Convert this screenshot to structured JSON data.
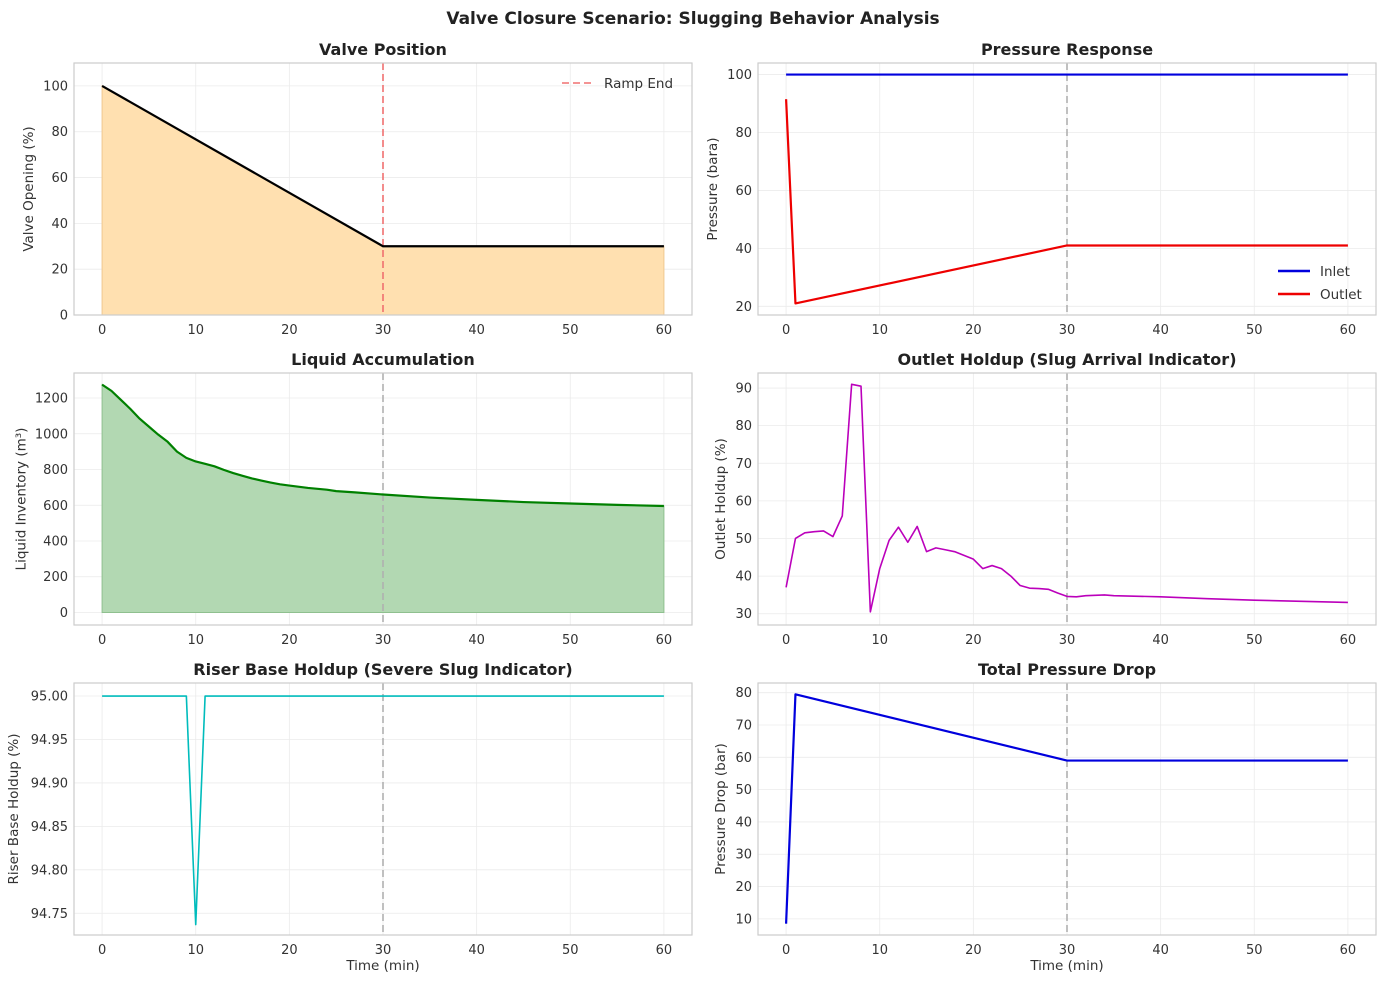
{
  "suptitle": "Valve Closure Scenario: Slugging Behavior Analysis",
  "chart_data": [
    {
      "id": "valve",
      "type": "area",
      "title": "Valve Position",
      "xlabel": "",
      "ylabel": "Valve Opening (%)",
      "xlim": [
        -3,
        63
      ],
      "ylim": [
        0,
        110
      ],
      "xticks": [
        0,
        10,
        20,
        30,
        40,
        50,
        60
      ],
      "yticks": [
        0,
        20,
        40,
        60,
        80,
        100
      ],
      "grid": true,
      "legend": "top-right",
      "vline": {
        "x": 30,
        "color": "#f07070",
        "name": "Ramp End"
      },
      "fill": {
        "color": "#ffe0b0",
        "edge": "#f0c890"
      },
      "series": [
        {
          "color": "#000000",
          "width": 2.2,
          "x": [
            0,
            30,
            31,
            60
          ],
          "y": [
            100,
            30,
            30,
            30
          ]
        }
      ]
    },
    {
      "id": "pressure",
      "type": "line",
      "title": "Pressure Response",
      "xlabel": "",
      "ylabel": "Pressure (bara)",
      "xlim": [
        -3,
        63
      ],
      "ylim": [
        17,
        104
      ],
      "xticks": [
        0,
        10,
        20,
        30,
        40,
        50,
        60
      ],
      "yticks": [
        20,
        40,
        60,
        80,
        100
      ],
      "grid": true,
      "legend": "bottom-right",
      "vline": {
        "x": 30,
        "color": "#b0b0b0"
      },
      "series": [
        {
          "name": "Inlet",
          "color": "#0000dd",
          "width": 2.2,
          "x": [
            0,
            1,
            30,
            60
          ],
          "y": [
            100,
            100,
            100,
            100
          ]
        },
        {
          "name": "Outlet",
          "color": "#ee0000",
          "width": 2.2,
          "x": [
            0,
            1,
            30,
            31,
            60
          ],
          "y": [
            91.5,
            21,
            41,
            41,
            41
          ]
        }
      ]
    },
    {
      "id": "liquid",
      "type": "area",
      "title": "Liquid Accumulation",
      "xlabel": "",
      "ylabel": "Liquid Inventory (m³)",
      "xlim": [
        -3,
        63
      ],
      "ylim": [
        -70,
        1340
      ],
      "xticks": [
        0,
        10,
        20,
        30,
        40,
        50,
        60
      ],
      "yticks": [
        0,
        200,
        400,
        600,
        800,
        1000,
        1200
      ],
      "grid": true,
      "vline": {
        "x": 30,
        "color": "#b0b0b0"
      },
      "fill": {
        "color": "#b2d8b2",
        "edge": "#8fc08f"
      },
      "series": [
        {
          "color": "#008000",
          "width": 2.2,
          "x": [
            0,
            1,
            2,
            3,
            4,
            5,
            6,
            7,
            8,
            9,
            10,
            11,
            12,
            13,
            14,
            15,
            16,
            17,
            18,
            19,
            20,
            22,
            24,
            25,
            27,
            30,
            35,
            40,
            45,
            50,
            55,
            60
          ],
          "y": [
            1275,
            1240,
            1190,
            1140,
            1085,
            1040,
            995,
            955,
            900,
            865,
            845,
            832,
            818,
            798,
            780,
            765,
            750,
            738,
            727,
            717,
            710,
            697,
            687,
            679,
            672,
            660,
            643,
            630,
            618,
            610,
            602,
            596
          ]
        }
      ]
    },
    {
      "id": "outlet_holdup",
      "type": "line",
      "title": "Outlet Holdup (Slug Arrival Indicator)",
      "xlabel": "",
      "ylabel": "Outlet Holdup (%)",
      "xlim": [
        -3,
        63
      ],
      "ylim": [
        27,
        94
      ],
      "xticks": [
        0,
        10,
        20,
        30,
        40,
        50,
        60
      ],
      "yticks": [
        30,
        40,
        50,
        60,
        70,
        80,
        90
      ],
      "grid": true,
      "vline": {
        "x": 30,
        "color": "#b0b0b0"
      },
      "series": [
        {
          "color": "#bb00bb",
          "width": 1.6,
          "x": [
            0,
            1,
            2,
            3,
            4,
            5,
            6,
            7,
            8,
            9,
            10,
            11,
            12,
            13,
            14,
            15,
            16,
            17,
            18,
            19,
            20,
            21,
            22,
            23,
            24,
            25,
            26,
            27,
            28,
            29,
            30,
            31,
            32,
            33,
            34,
            35,
            40,
            45,
            50,
            55,
            60
          ],
          "y": [
            37,
            50,
            51.5,
            51.8,
            52,
            50.5,
            56,
            91,
            90.5,
            30.5,
            42,
            49.5,
            53,
            49,
            53.2,
            46.5,
            47.5,
            47,
            46.5,
            45.5,
            44.5,
            42,
            42.8,
            42,
            40,
            37.5,
            36.8,
            36.7,
            36.5,
            35.5,
            34.6,
            34.5,
            34.8,
            34.9,
            35,
            34.8,
            34.5,
            34,
            33.6,
            33.3,
            33
          ]
        }
      ]
    },
    {
      "id": "riser",
      "type": "line",
      "title": "Riser Base Holdup (Severe Slug Indicator)",
      "xlabel": "Time (min)",
      "ylabel": "Riser Base Holdup (%)",
      "xlim": [
        -3,
        63
      ],
      "ylim": [
        94.725,
        95.015
      ],
      "xticks": [
        0,
        10,
        20,
        30,
        40,
        50,
        60
      ],
      "yticks": [
        94.75,
        94.8,
        94.85,
        94.9,
        94.95,
        95.0
      ],
      "ytick_labels": [
        "94.75",
        "94.80",
        "94.85",
        "94.90",
        "94.95",
        "95.00"
      ],
      "grid": true,
      "vline": {
        "x": 30,
        "color": "#b0b0b0"
      },
      "series": [
        {
          "color": "#00bcbc",
          "width": 1.6,
          "x": [
            0,
            9,
            10,
            11,
            30,
            60
          ],
          "y": [
            95.0,
            95.0,
            94.737,
            95.0,
            95.0,
            95.0
          ]
        }
      ]
    },
    {
      "id": "dp",
      "type": "line",
      "title": "Total Pressure Drop",
      "xlabel": "Time (min)",
      "ylabel": "Pressure Drop (bar)",
      "xlim": [
        -3,
        63
      ],
      "ylim": [
        5,
        83
      ],
      "xticks": [
        0,
        10,
        20,
        30,
        40,
        50,
        60
      ],
      "yticks": [
        10,
        20,
        30,
        40,
        50,
        60,
        70,
        80
      ],
      "grid": true,
      "vline": {
        "x": 30,
        "color": "#b0b0b0"
      },
      "series": [
        {
          "color": "#0000dd",
          "width": 2.2,
          "x": [
            0,
            1,
            30,
            31,
            60
          ],
          "y": [
            8.5,
            79.5,
            59,
            59,
            59
          ]
        }
      ]
    }
  ]
}
